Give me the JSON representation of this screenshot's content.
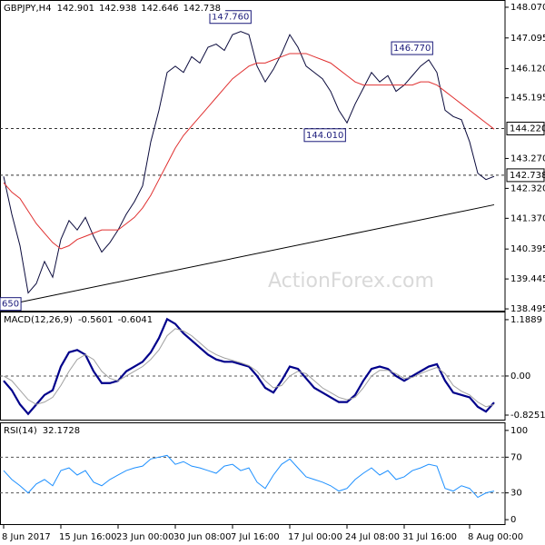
{
  "chart_data": [
    {
      "type": "line",
      "title": "GBPJPY,H4",
      "header_values": [
        142.901,
        142.938,
        142.646,
        142.738
      ],
      "watermark": "ActionForex.com",
      "ylim": [
        138.41,
        148.3
      ],
      "yticks": [
        {
          "value": 148.07,
          "label": "148.070"
        },
        {
          "value": 147.095,
          "label": "147.095"
        },
        {
          "value": 146.12,
          "label": "146.120"
        },
        {
          "value": 145.195,
          "label": "145.195"
        },
        {
          "value": 143.27,
          "label": "143.270"
        },
        {
          "value": 142.32,
          "label": "142.320"
        },
        {
          "value": 141.37,
          "label": "141.370"
        },
        {
          "value": 140.395,
          "label": "140.395"
        },
        {
          "value": 139.445,
          "label": "139.445"
        },
        {
          "value": 138.495,
          "label": "138.495"
        }
      ],
      "series": [
        {
          "color": "#0a0a3c",
          "values": [
            142.7,
            141.5,
            140.5,
            139.0,
            139.3,
            140.0,
            139.5,
            140.7,
            141.3,
            141.0,
            141.4,
            140.8,
            140.3,
            140.6,
            141.0,
            141.5,
            141.9,
            142.4,
            143.8,
            144.8,
            146.0,
            146.2,
            146.0,
            146.5,
            146.3,
            146.8,
            146.9,
            146.7,
            147.2,
            147.3,
            147.2,
            146.2,
            145.7,
            146.1,
            146.6,
            147.2,
            146.8,
            146.2,
            146.0,
            145.8,
            145.4,
            144.8,
            144.4,
            145.0,
            145.5,
            146.0,
            145.7,
            145.9,
            145.4,
            145.6,
            145.9,
            146.2,
            146.4,
            146.0,
            144.8,
            144.6,
            144.5,
            143.8,
            142.8,
            142.6,
            142.7
          ]
        },
        {
          "color": "#e03030",
          "values": [
            142.5,
            142.2,
            142.0,
            141.6,
            141.2,
            140.9,
            140.6,
            140.4,
            140.5,
            140.7,
            140.8,
            140.9,
            141.0,
            141.0,
            141.0,
            141.2,
            141.4,
            141.7,
            142.1,
            142.6,
            143.1,
            143.6,
            144.0,
            144.3,
            144.6,
            144.9,
            145.2,
            145.5,
            145.8,
            146.0,
            146.2,
            146.3,
            146.3,
            146.4,
            146.5,
            146.6,
            146.6,
            146.6,
            146.5,
            146.4,
            146.3,
            146.1,
            145.9,
            145.7,
            145.6,
            145.6,
            145.6,
            145.6,
            145.6,
            145.6,
            145.6,
            145.7,
            145.7,
            145.6,
            145.4,
            145.2,
            145.0,
            144.8,
            144.6,
            144.4,
            144.2
          ]
        }
      ],
      "trendline": [
        138.6,
        141.8
      ],
      "hlines": [
        {
          "value": 144.22,
          "label": "144.220"
        },
        {
          "value": 142.738,
          "label": "142.738"
        }
      ],
      "annotations": [
        {
          "value": 147.76,
          "label": "147.760"
        },
        {
          "value": 146.77,
          "label": "146.770"
        },
        {
          "value": 144.01,
          "label": "144.010"
        },
        {
          "value": 138.65,
          "label": "650"
        }
      ]
    },
    {
      "type": "line",
      "title": "MACD(12,26,9)",
      "header_values": [
        -0.5601,
        -0.6041
      ],
      "ylim": [
        -0.94,
        1.36
      ],
      "yticks": [
        1.1889,
        {
          "value": 0,
          "label": "0.00"
        },
        -0.8251
      ],
      "levels": [
        0
      ],
      "series": [
        {
          "color": "#00008b",
          "bold": true,
          "values": [
            -0.1,
            -0.3,
            -0.6,
            -0.8,
            -0.6,
            -0.4,
            -0.3,
            0.2,
            0.5,
            0.55,
            0.45,
            0.1,
            -0.15,
            -0.15,
            -0.1,
            0.1,
            0.2,
            0.3,
            0.5,
            0.8,
            1.2,
            1.1,
            0.9,
            0.75,
            0.6,
            0.45,
            0.35,
            0.3,
            0.3,
            0.25,
            0.2,
            0.0,
            -0.25,
            -0.35,
            -0.1,
            0.2,
            0.15,
            -0.05,
            -0.25,
            -0.35,
            -0.45,
            -0.55,
            -0.55,
            -0.4,
            -0.1,
            0.15,
            0.2,
            0.15,
            0.0,
            -0.1,
            0.0,
            0.1,
            0.2,
            0.25,
            -0.1,
            -0.35,
            -0.4,
            -0.45,
            -0.65,
            -0.75,
            -0.56
          ]
        },
        {
          "color": "#a0a0a0",
          "values": [
            0.0,
            -0.1,
            -0.3,
            -0.5,
            -0.6,
            -0.55,
            -0.45,
            -0.2,
            0.1,
            0.35,
            0.45,
            0.35,
            0.1,
            -0.05,
            -0.1,
            0.0,
            0.1,
            0.2,
            0.35,
            0.55,
            0.85,
            1.0,
            0.95,
            0.85,
            0.7,
            0.55,
            0.45,
            0.38,
            0.33,
            0.28,
            0.22,
            0.1,
            -0.1,
            -0.25,
            -0.2,
            0.0,
            0.1,
            0.05,
            -0.1,
            -0.25,
            -0.35,
            -0.45,
            -0.5,
            -0.45,
            -0.25,
            0.0,
            0.12,
            0.12,
            0.05,
            -0.05,
            -0.03,
            0.05,
            0.12,
            0.18,
            0.05,
            -0.2,
            -0.32,
            -0.4,
            -0.55,
            -0.65,
            -0.6
          ]
        }
      ]
    },
    {
      "type": "line",
      "title": "RSI(14)",
      "header_values": [
        32.1728
      ],
      "ylim": [
        -6,
        109
      ],
      "yticks": [
        100,
        70,
        30,
        0
      ],
      "levels": [
        70,
        30
      ],
      "series": [
        {
          "color": "#1e90ff",
          "values": [
            55,
            45,
            38,
            30,
            40,
            45,
            38,
            55,
            58,
            50,
            55,
            42,
            38,
            45,
            50,
            55,
            58,
            60,
            68,
            70,
            72,
            62,
            65,
            60,
            58,
            55,
            52,
            60,
            62,
            55,
            58,
            42,
            35,
            50,
            62,
            68,
            58,
            48,
            45,
            42,
            38,
            32,
            35,
            45,
            52,
            58,
            50,
            55,
            45,
            48,
            55,
            58,
            62,
            60,
            35,
            32,
            38,
            35,
            25,
            30,
            32
          ]
        }
      ],
      "categories": [
        "8 Jun 2017",
        null,
        null,
        null,
        null,
        null,
        null,
        "15 Jun 16:00",
        null,
        null,
        null,
        null,
        null,
        null,
        "23 Jun 00:00",
        null,
        null,
        null,
        null,
        null,
        null,
        "30 Jun 08:00",
        null,
        null,
        null,
        null,
        null,
        null,
        "7 Jul 16:00",
        null,
        null,
        null,
        null,
        null,
        null,
        "17 Jul 00:00",
        null,
        null,
        null,
        null,
        null,
        null,
        "24 Jul 08:00",
        null,
        null,
        null,
        null,
        null,
        null,
        "31 Jul 16:00",
        null,
        null,
        null,
        null,
        null,
        null,
        null,
        "8 Aug 00:00",
        null,
        null,
        null
      ]
    }
  ]
}
